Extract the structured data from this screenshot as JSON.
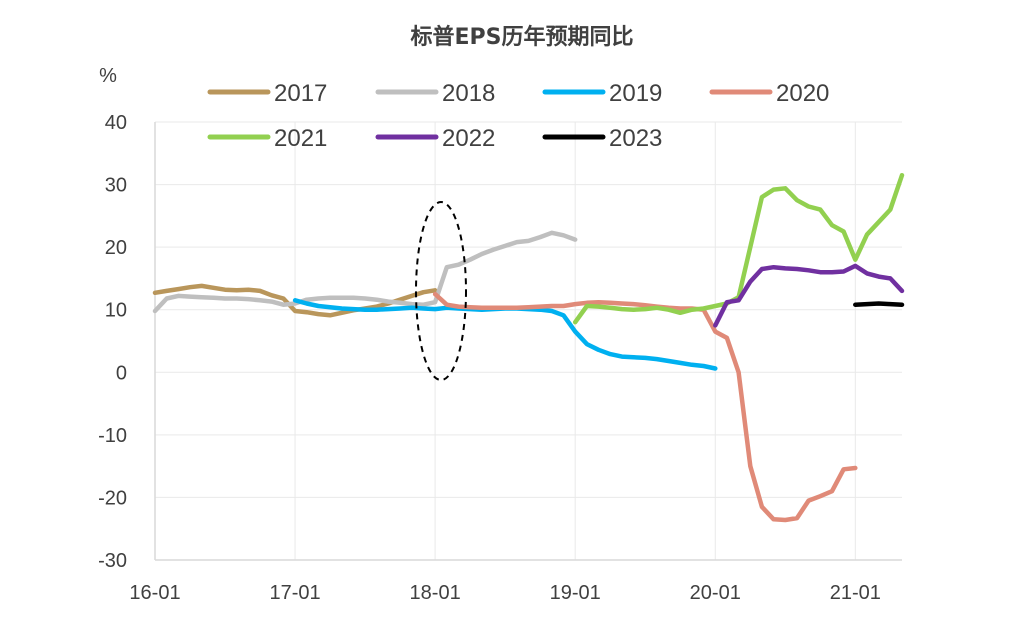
{
  "chart_data": {
    "type": "line",
    "title": "标普EPS历年预期同比",
    "ylabel": "%",
    "xlabel": "",
    "ylim": [
      -30,
      40
    ],
    "yticks": [
      40,
      30,
      20,
      10,
      0,
      -10,
      -20,
      -30
    ],
    "xlim": [
      "16-01",
      "21-05"
    ],
    "xticks": [
      "16-01",
      "17-01",
      "18-01",
      "19-01",
      "20-01",
      "21-01"
    ],
    "grid": true,
    "legend_position": "top",
    "annotation": "dashed ellipse around 18-01",
    "series": [
      {
        "name": "2017",
        "color": "#b9965b",
        "x": [
          "16-01",
          "16-02",
          "16-03",
          "16-04",
          "16-05",
          "16-06",
          "16-07",
          "16-08",
          "16-09",
          "16-10",
          "16-11",
          "16-12",
          "17-01",
          "17-02",
          "17-03",
          "17-04",
          "17-05",
          "17-06",
          "17-07",
          "17-08",
          "17-09",
          "17-10",
          "17-11",
          "17-12",
          "18-01"
        ],
        "values": [
          12.7,
          13.0,
          13.3,
          13.6,
          13.8,
          13.5,
          13.2,
          13.1,
          13.2,
          13.0,
          12.3,
          11.8,
          9.8,
          9.6,
          9.3,
          9.1,
          9.5,
          9.9,
          10.2,
          10.5,
          11.0,
          11.6,
          12.2,
          12.8,
          13.1
        ]
      },
      {
        "name": "2018",
        "color": "#bfbfbf",
        "x": [
          "16-01",
          "16-02",
          "16-03",
          "16-04",
          "16-05",
          "16-06",
          "16-07",
          "16-08",
          "16-09",
          "16-10",
          "16-11",
          "16-12",
          "17-01",
          "17-02",
          "17-03",
          "17-04",
          "17-05",
          "17-06",
          "17-07",
          "17-08",
          "17-09",
          "17-10",
          "17-11",
          "17-12",
          "18-01",
          "18-02",
          "18-03",
          "18-04",
          "18-05",
          "18-06",
          "18-07",
          "18-08",
          "18-09",
          "18-10",
          "18-11",
          "18-12",
          "19-01"
        ],
        "values": [
          9.8,
          11.8,
          12.2,
          12.1,
          12.0,
          11.9,
          11.8,
          11.8,
          11.7,
          11.5,
          11.3,
          10.8,
          11.0,
          11.6,
          11.8,
          11.9,
          11.9,
          11.9,
          11.8,
          11.6,
          11.3,
          11.1,
          10.9,
          10.8,
          11.2,
          16.8,
          17.2,
          18.0,
          18.9,
          19.6,
          20.2,
          20.8,
          21.0,
          21.6,
          22.3,
          21.9,
          21.2
        ]
      },
      {
        "name": "2019",
        "color": "#00b0f0",
        "x": [
          "17-01",
          "17-02",
          "17-03",
          "17-04",
          "17-05",
          "17-06",
          "17-07",
          "17-08",
          "17-09",
          "17-10",
          "17-11",
          "17-12",
          "18-01",
          "18-02",
          "18-03",
          "18-04",
          "18-05",
          "18-06",
          "18-07",
          "18-08",
          "18-09",
          "18-10",
          "18-11",
          "18-12",
          "19-01",
          "19-02",
          "19-03",
          "19-04",
          "19-05",
          "19-06",
          "19-07",
          "19-08",
          "19-09",
          "19-10",
          "19-11",
          "19-12",
          "20-01"
        ],
        "values": [
          11.5,
          11.0,
          10.6,
          10.4,
          10.2,
          10.1,
          10.0,
          10.0,
          10.1,
          10.2,
          10.3,
          10.2,
          10.1,
          10.3,
          10.2,
          10.1,
          10.0,
          10.1,
          10.2,
          10.2,
          10.1,
          10.0,
          9.8,
          9.1,
          6.5,
          4.5,
          3.6,
          2.9,
          2.5,
          2.4,
          2.3,
          2.1,
          1.8,
          1.5,
          1.2,
          1.0,
          0.6
        ]
      },
      {
        "name": "2020",
        "color": "#e08a78",
        "x": [
          "18-01",
          "18-02",
          "18-03",
          "18-04",
          "18-05",
          "18-06",
          "18-07",
          "18-08",
          "18-09",
          "18-10",
          "18-11",
          "18-12",
          "19-01",
          "19-02",
          "19-03",
          "19-04",
          "19-05",
          "19-06",
          "19-07",
          "19-08",
          "19-09",
          "19-10",
          "19-11",
          "19-12",
          "20-01",
          "20-02",
          "20-03",
          "20-04",
          "20-05",
          "20-06",
          "20-07",
          "20-08",
          "20-09",
          "20-10",
          "20-11",
          "20-12",
          "21-01"
        ],
        "values": [
          12.5,
          10.8,
          10.5,
          10.4,
          10.3,
          10.3,
          10.3,
          10.3,
          10.4,
          10.5,
          10.6,
          10.6,
          10.9,
          11.1,
          11.2,
          11.1,
          11.0,
          10.9,
          10.7,
          10.5,
          10.3,
          10.2,
          10.2,
          10.0,
          6.5,
          5.5,
          0.0,
          -15.0,
          -21.5,
          -23.5,
          -23.6,
          -23.3,
          -20.5,
          -19.8,
          -19.0,
          -15.5,
          -15.3
        ]
      },
      {
        "name": "2021",
        "color": "#92d050",
        "x": [
          "19-01",
          "19-02",
          "19-03",
          "19-04",
          "19-05",
          "19-06",
          "19-07",
          "19-08",
          "19-09",
          "19-10",
          "19-11",
          "19-12",
          "20-01",
          "20-02",
          "20-03",
          "20-04",
          "20-05",
          "20-06",
          "20-07",
          "20-08",
          "20-09",
          "20-10",
          "20-11",
          "20-12",
          "21-01",
          "21-02",
          "21-03",
          "21-04",
          "21-05"
        ],
        "values": [
          8.0,
          10.6,
          10.5,
          10.3,
          10.1,
          10.0,
          10.1,
          10.3,
          10.0,
          9.5,
          10.0,
          10.2,
          10.6,
          11.0,
          12.0,
          20.0,
          28.0,
          29.2,
          29.4,
          27.5,
          26.5,
          26.0,
          23.5,
          22.5,
          18.0,
          22.0,
          24.0,
          26.0,
          31.5
        ]
      },
      {
        "name": "2022",
        "color": "#7030a0",
        "x": [
          "20-01",
          "20-02",
          "20-03",
          "20-04",
          "20-05",
          "20-06",
          "20-07",
          "20-08",
          "20-09",
          "20-10",
          "20-11",
          "20-12",
          "21-01",
          "21-02",
          "21-03",
          "21-04",
          "21-05"
        ],
        "values": [
          7.5,
          11.2,
          11.5,
          14.5,
          16.5,
          16.8,
          16.6,
          16.5,
          16.3,
          16.0,
          16.0,
          16.1,
          17.0,
          15.8,
          15.3,
          15.0,
          13.0
        ]
      },
      {
        "name": "2023",
        "color": "#000000",
        "x": [
          "21-01",
          "21-02",
          "21-03",
          "21-04",
          "21-05"
        ],
        "values": [
          10.8,
          10.9,
          11.0,
          10.9,
          10.8
        ]
      }
    ]
  }
}
